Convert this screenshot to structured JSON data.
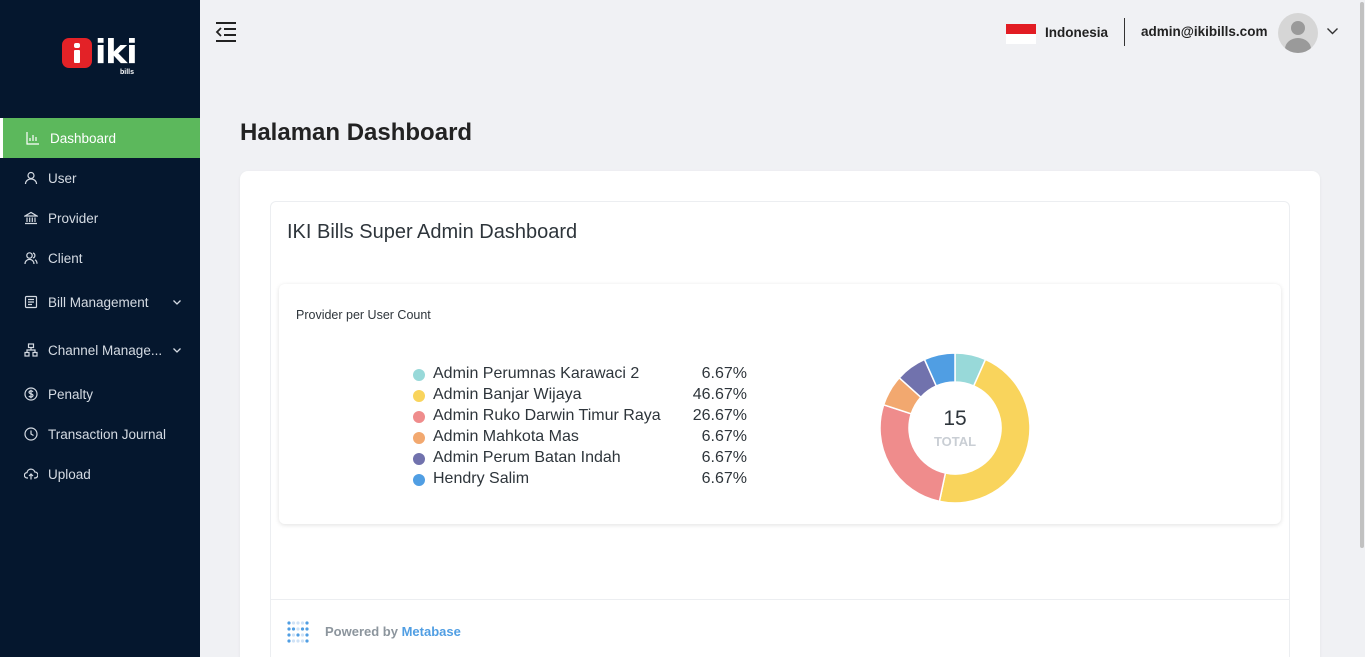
{
  "brand": {
    "logo_text": "iki",
    "logo_sub": "bills"
  },
  "sidebar": {
    "items": [
      {
        "label": "Dashboard",
        "icon": "bar-chart-icon",
        "active": true
      },
      {
        "label": "User",
        "icon": "user-icon"
      },
      {
        "label": "Provider",
        "icon": "bank-icon"
      },
      {
        "label": "Client",
        "icon": "users-icon"
      },
      {
        "label": "Bill Management",
        "icon": "document-icon",
        "expandable": true
      },
      {
        "label": "Channel Manage...",
        "icon": "network-icon",
        "expandable": true
      },
      {
        "label": "Penalty",
        "icon": "dollar-circle-icon"
      },
      {
        "label": "Transaction Journal",
        "icon": "clock-icon"
      },
      {
        "label": "Upload",
        "icon": "cloud-upload-icon"
      }
    ]
  },
  "header": {
    "language": "Indonesia",
    "user_email": "admin@ikibills.com"
  },
  "page": {
    "title": "Halaman Dashboard"
  },
  "metabase": {
    "dashboard_title": "IKI Bills Super Admin Dashboard",
    "card_title": "Provider per User Count",
    "total_value": "15",
    "total_label": "TOTAL",
    "powered_by": "Powered by",
    "powered_brand": "Metabase"
  },
  "chart_data": {
    "type": "pie",
    "title": "Provider per User Count",
    "total": 15,
    "slices": [
      {
        "label": "Admin Perumnas Karawaci 2",
        "value": 1,
        "percent": "6.67%",
        "color": "#98d9d9"
      },
      {
        "label": "Admin Banjar Wijaya",
        "value": 7,
        "percent": "46.67%",
        "color": "#f9d45c"
      },
      {
        "label": "Admin Ruko Darwin Timur Raya",
        "value": 4,
        "percent": "26.67%",
        "color": "#ef8c8c"
      },
      {
        "label": "Admin Mahkota Mas",
        "value": 1,
        "percent": "6.67%",
        "color": "#f2a86f"
      },
      {
        "label": "Admin Perum Batan Indah",
        "value": 1,
        "percent": "6.67%",
        "color": "#7172ad"
      },
      {
        "label": "Hendry Salim",
        "value": 1,
        "percent": "6.67%",
        "color": "#509ee3"
      }
    ]
  },
  "colors": {
    "sidebar_bg": "#05172e",
    "active_nav": "#5cb85c",
    "page_bg": "#f0f1f4",
    "metabase_brand": "#509ee3"
  }
}
